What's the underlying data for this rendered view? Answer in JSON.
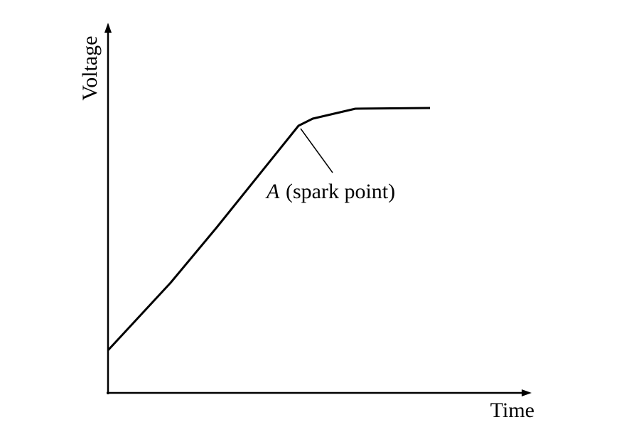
{
  "axes": {
    "y_label": "Voltage",
    "x_label": "Time"
  },
  "annotation": {
    "letter": "A",
    "text": "(spark point)"
  }
}
